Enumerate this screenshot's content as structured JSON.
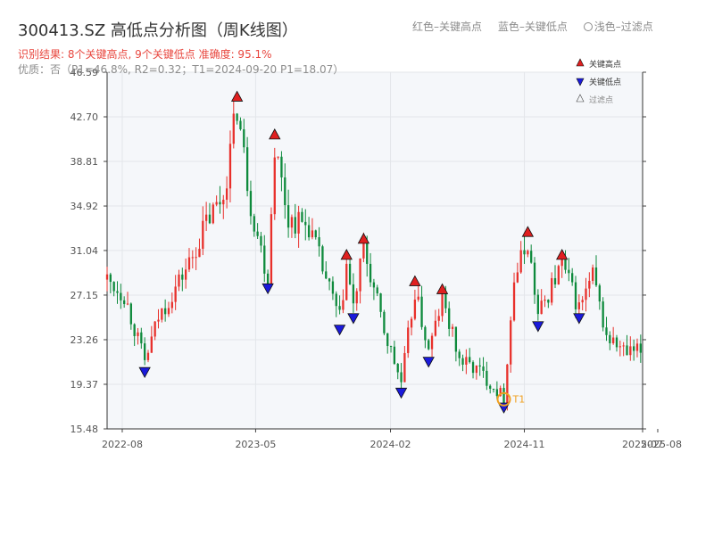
{
  "header": {
    "title": "300413.SZ 高低点分析图（周K线图）",
    "legend_red": "红色–关键高点",
    "legend_blue": "蓝色–关键低点",
    "legend_light": "浅色–过滤点",
    "result": "识别结果: 8个关键高点, 9个关键低点  准确度: 95.1%",
    "quality": "优质：否（P1=46.8%, R2=0.32；T1=2024-09-20 P1=18.07）"
  },
  "chart_data": {
    "type": "candlestick",
    "colors": {
      "up": "#e8302b",
      "down": "#0e8a3c",
      "high_marker": "#e02020",
      "low_marker": "#1a1adb",
      "t1": "#f0a020",
      "plot_bg": "#f5f7fa",
      "grid": "#e3e6ea"
    },
    "ylim": [
      15.48,
      46.59
    ],
    "yticks": [
      15.48,
      19.37,
      23.26,
      27.15,
      31.04,
      34.92,
      38.81,
      42.7,
      46.59
    ],
    "xlim": [
      "2022-07",
      "2025-07"
    ],
    "xticks": [
      "2022-08",
      "2023-05",
      "2024-02",
      "2024-11",
      "2025-07",
      "2025-08"
    ],
    "legend": {
      "high": "关键高点",
      "low": "关键低点",
      "filtered": "过滤点",
      "position": "top-right"
    },
    "anchors": [
      [
        "2022-07-01",
        28.5
      ],
      [
        "2022-08-05",
        27.2
      ],
      [
        "2022-09-16",
        21.3
      ],
      [
        "2022-10-14",
        25.2
      ],
      [
        "2022-11-18",
        27.8
      ],
      [
        "2022-12-23",
        30.5
      ],
      [
        "2023-01-20",
        33.5
      ],
      [
        "2023-02-24",
        35.8
      ],
      [
        "2023-03-24",
        43.6
      ],
      [
        "2023-04-21",
        35.0
      ],
      [
        "2023-05-26",
        28.6
      ],
      [
        "2023-06-09",
        40.3
      ],
      [
        "2023-07-07",
        33.8
      ],
      [
        "2023-08-18",
        33.2
      ],
      [
        "2023-09-22",
        28.5
      ],
      [
        "2023-10-20",
        25.0
      ],
      [
        "2023-11-03",
        29.8
      ],
      [
        "2023-11-17",
        26.0
      ],
      [
        "2023-12-08",
        31.2
      ],
      [
        "2024-01-19",
        24.0
      ],
      [
        "2024-02-23",
        19.5
      ],
      [
        "2024-03-22",
        27.5
      ],
      [
        "2024-04-19",
        22.2
      ],
      [
        "2024-05-17",
        26.8
      ],
      [
        "2024-06-21",
        21.5
      ],
      [
        "2024-08-02",
        20.5
      ],
      [
        "2024-09-20",
        18.2
      ],
      [
        "2024-10-11",
        28.5
      ],
      [
        "2024-11-08",
        31.8
      ],
      [
        "2024-11-29",
        25.3
      ],
      [
        "2024-12-27",
        28.0
      ],
      [
        "2025-01-17",
        29.8
      ],
      [
        "2025-02-21",
        26.0
      ],
      [
        "2025-03-21",
        28.8
      ],
      [
        "2025-04-18",
        23.5
      ],
      [
        "2025-05-30",
        22.0
      ],
      [
        "2025-07-01",
        22.3
      ]
    ],
    "key_highs": [
      {
        "date": "2023-03-24",
        "price": 43.6
      },
      {
        "date": "2023-06-09",
        "price": 40.3
      },
      {
        "date": "2023-11-03",
        "price": 29.8
      },
      {
        "date": "2023-12-08",
        "price": 31.2
      },
      {
        "date": "2024-03-22",
        "price": 27.5
      },
      {
        "date": "2024-05-17",
        "price": 26.8
      },
      {
        "date": "2024-11-08",
        "price": 31.8
      },
      {
        "date": "2025-01-17",
        "price": 29.8
      }
    ],
    "key_lows": [
      {
        "date": "2022-09-16",
        "price": 21.3
      },
      {
        "date": "2023-05-26",
        "price": 28.6
      },
      {
        "date": "2023-10-20",
        "price": 25.0
      },
      {
        "date": "2023-11-17",
        "price": 26.0
      },
      {
        "date": "2024-02-23",
        "price": 19.5
      },
      {
        "date": "2024-04-19",
        "price": 22.2
      },
      {
        "date": "2024-09-20",
        "price": 18.2
      },
      {
        "date": "2024-11-29",
        "price": 25.3
      },
      {
        "date": "2025-02-21",
        "price": 26.0
      }
    ],
    "t1": {
      "date": "2024-09-20",
      "price": 18.07,
      "label": "T1"
    }
  }
}
